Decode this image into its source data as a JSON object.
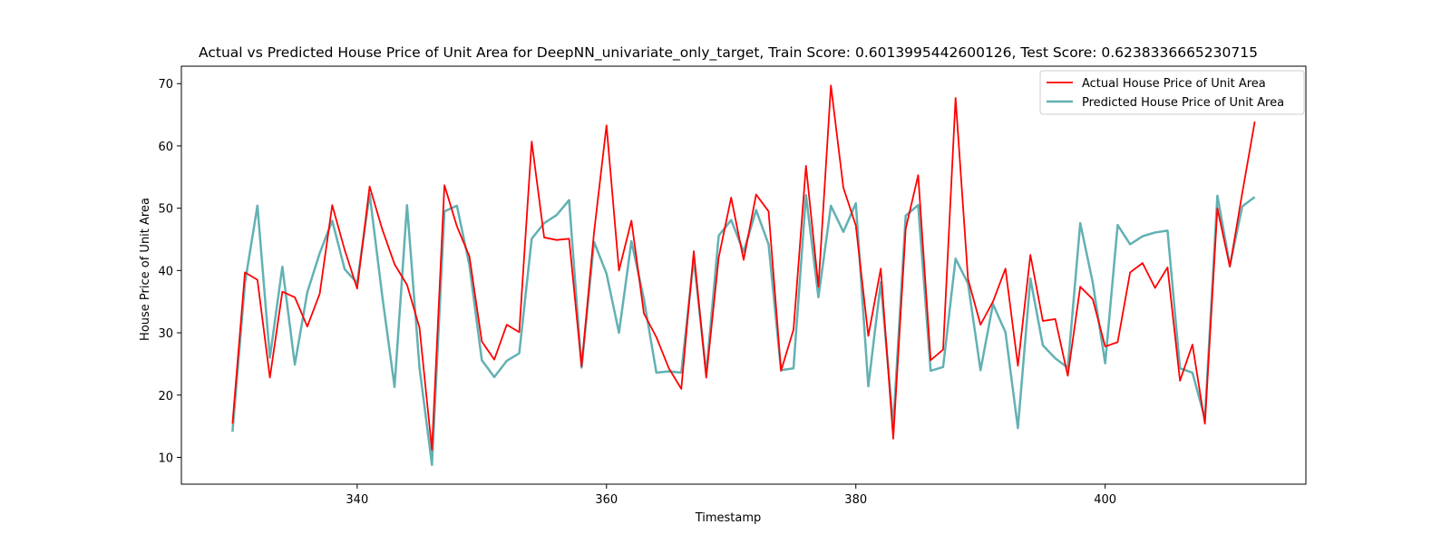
{
  "chart_data": {
    "type": "line",
    "title": "Actual vs Predicted House Price of Unit Area for DeepNN_univariate_only_target, Train Score: 0.6013995442600126, Test Score: 0.6238336665230715",
    "xlabel": "Timestamp",
    "ylabel": "House Price of Unit Area",
    "xlim": [
      325.9,
      416.1
    ],
    "ylim": [
      5.7,
      72.8
    ],
    "xticks": [
      340,
      360,
      380,
      400
    ],
    "yticks": [
      10,
      20,
      30,
      40,
      50,
      60,
      70
    ],
    "grid": false,
    "legend_position": "top-right",
    "x": [
      330,
      331,
      332,
      333,
      334,
      335,
      336,
      337,
      338,
      339,
      340,
      341,
      342,
      343,
      344,
      345,
      346,
      347,
      348,
      349,
      350,
      351,
      352,
      353,
      354,
      355,
      356,
      357,
      358,
      359,
      360,
      361,
      362,
      363,
      364,
      365,
      366,
      367,
      368,
      369,
      370,
      371,
      372,
      373,
      374,
      375,
      376,
      377,
      378,
      379,
      380,
      381,
      382,
      383,
      384,
      385,
      386,
      387,
      388,
      389,
      390,
      391,
      392,
      393,
      394,
      395,
      396,
      397,
      398,
      399,
      400,
      401,
      402,
      403,
      404,
      405,
      406,
      407,
      408,
      409,
      410,
      411,
      412
    ],
    "series": [
      {
        "name": "Actual House Price of Unit Area",
        "color": "#ff0000",
        "values": [
          15.4,
          39.7,
          38.5,
          22.8,
          36.6,
          35.7,
          31.0,
          36.3,
          50.5,
          43.3,
          37.1,
          53.5,
          46.7,
          41.0,
          37.7,
          30.8,
          11.2,
          53.7,
          47.1,
          42.3,
          28.6,
          25.7,
          31.3,
          30.1,
          60.7,
          45.3,
          44.9,
          45.1,
          24.6,
          46.1,
          63.3,
          40.0,
          48.0,
          33.1,
          29.3,
          24.3,
          21.0,
          43.1,
          22.8,
          42.1,
          51.7,
          41.7,
          52.2,
          49.5,
          23.9,
          30.5,
          56.8,
          37.4,
          69.7,
          53.3,
          47.2,
          29.5,
          40.3,
          13.0,
          46.7,
          55.3,
          25.6,
          27.3,
          67.7,
          38.6,
          31.3,
          35.0,
          40.3,
          24.7,
          42.5,
          31.9,
          32.2,
          23.1,
          37.4,
          35.4,
          27.8,
          28.5,
          39.7,
          41.2,
          37.2,
          40.5,
          22.3,
          28.1,
          15.4,
          50.0,
          40.6,
          52.5,
          63.9
        ]
      },
      {
        "name": "Predicted House Price of Unit Area",
        "color": "#62b1b3",
        "values": [
          14.1,
          38.0,
          50.4,
          26.0,
          40.6,
          24.9,
          36.5,
          42.8,
          48.0,
          40.2,
          38.0,
          52.3,
          36.1,
          21.3,
          50.5,
          24.4,
          8.8,
          49.5,
          50.4,
          40.9,
          25.6,
          22.9,
          25.5,
          26.7,
          45.1,
          47.6,
          48.9,
          51.3,
          24.4,
          44.6,
          39.5,
          30.0,
          44.7,
          35.4,
          23.6,
          23.8,
          23.6,
          41.9,
          23.5,
          45.6,
          48.1,
          43.0,
          49.7,
          44.2,
          24.0,
          24.3,
          52.1,
          35.7,
          50.4,
          46.2,
          50.8,
          21.4,
          38.1,
          15.1,
          48.8,
          50.5,
          23.9,
          24.5,
          41.9,
          37.9,
          24.0,
          34.6,
          30.1,
          14.7,
          38.7,
          28.0,
          25.9,
          24.4,
          47.6,
          38.1,
          25.1,
          47.3,
          44.2,
          45.5,
          46.1,
          46.4,
          24.3,
          23.6,
          16.2,
          52.0,
          40.8,
          50.3,
          51.8
        ]
      }
    ]
  }
}
